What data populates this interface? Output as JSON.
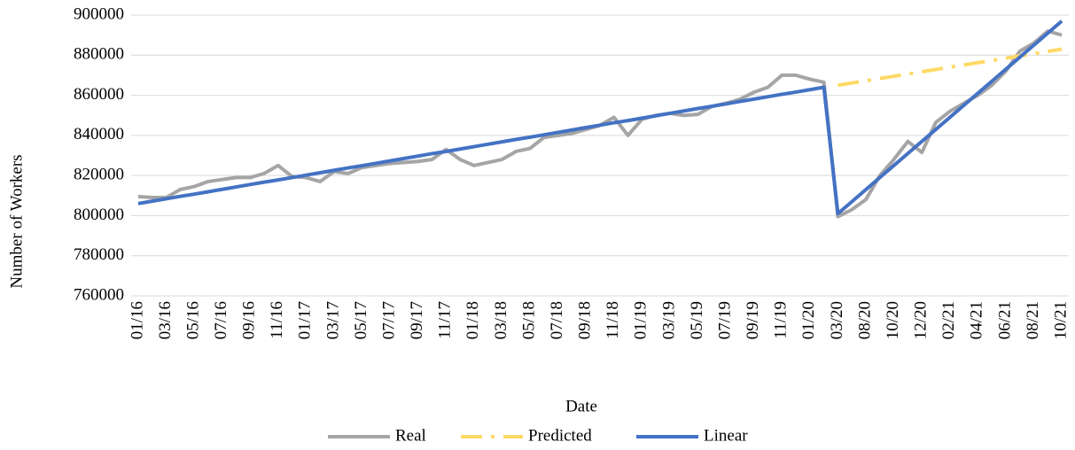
{
  "chart_data": {
    "type": "line",
    "x_label": "Date",
    "y_label": "Number of Workers",
    "categories": [
      "01/16",
      null,
      "03/16",
      null,
      "05/16",
      null,
      "07/16",
      null,
      "09/16",
      null,
      "11/16",
      null,
      "01/17",
      null,
      "03/17",
      null,
      "05/17",
      null,
      "07/17",
      null,
      "09/17",
      null,
      "11/17",
      null,
      "01/18",
      null,
      "03/18",
      null,
      "05/18",
      null,
      "07/18",
      null,
      "09/18",
      null,
      "11/18",
      null,
      "01/19",
      null,
      "03/19",
      null,
      "05/19",
      null,
      "07/19",
      null,
      "09/19",
      null,
      "11/19",
      null,
      "01/20",
      null,
      "03/20",
      null,
      "08/20",
      null,
      "10/20",
      null,
      "12/20",
      null,
      "02/21",
      null,
      "04/21",
      null,
      "06/21",
      null,
      "08/21",
      null,
      "10/21"
    ],
    "series": [
      {
        "name": "Real",
        "color": "#a5a5a5",
        "values": [
          809500,
          809000,
          809000,
          813000,
          814500,
          817000,
          818000,
          819000,
          819000,
          821000,
          825000,
          819500,
          819000,
          817000,
          822000,
          821000,
          824000,
          825000,
          826000,
          826500,
          827000,
          828000,
          833000,
          828000,
          825000,
          826500,
          828000,
          832000,
          833500,
          839000,
          840000,
          841000,
          843000,
          845000,
          849000,
          840000,
          848000,
          850000,
          851000,
          850000,
          850500,
          854500,
          856000,
          858000,
          861500,
          864000,
          870000,
          870000,
          868000,
          866500,
          799500,
          803000,
          808000,
          820000,
          828000,
          837000,
          831500,
          846500,
          852000,
          856000,
          860000,
          865000,
          872000,
          882000,
          886000,
          892000,
          890000
        ]
      },
      {
        "name": "Predicted",
        "color": "#ffd966",
        "dash": "24 10 4 10",
        "values": [
          null,
          null,
          null,
          null,
          null,
          null,
          null,
          null,
          null,
          null,
          null,
          null,
          null,
          null,
          null,
          null,
          null,
          null,
          null,
          null,
          null,
          null,
          null,
          null,
          null,
          null,
          null,
          null,
          null,
          null,
          null,
          null,
          null,
          null,
          null,
          null,
          null,
          null,
          null,
          null,
          null,
          null,
          null,
          null,
          null,
          null,
          null,
          null,
          null,
          null,
          865000,
          866125,
          867250,
          868375,
          869500,
          870625,
          871750,
          872875,
          874000,
          875125,
          876250,
          877375,
          878500,
          879625,
          880750,
          881875,
          883000
        ]
      },
      {
        "name": "Linear",
        "color": "#4472c4",
        "values": [
          806000,
          807200,
          808400,
          809600,
          810700,
          811900,
          813100,
          814300,
          815500,
          816700,
          817800,
          819000,
          820200,
          821400,
          822600,
          823800,
          824900,
          826100,
          827300,
          828500,
          829700,
          830900,
          832000,
          833200,
          834400,
          835600,
          836800,
          838000,
          839100,
          840300,
          841500,
          842700,
          843900,
          845100,
          846300,
          847400,
          848600,
          849800,
          851000,
          852200,
          853400,
          854500,
          855700,
          856900,
          858100,
          859300,
          860500,
          861600,
          862800,
          864000,
          801000,
          807000,
          813000,
          819000,
          825000,
          831000,
          837000,
          843000,
          849000,
          855000,
          861000,
          867000,
          873000,
          879000,
          885000,
          891000,
          897000
        ]
      }
    ],
    "ylim": [
      760000,
      900000
    ],
    "yticks": [
      760000,
      780000,
      800000,
      820000,
      840000,
      860000,
      880000,
      900000
    ],
    "grid": true,
    "legend": "bottom"
  }
}
